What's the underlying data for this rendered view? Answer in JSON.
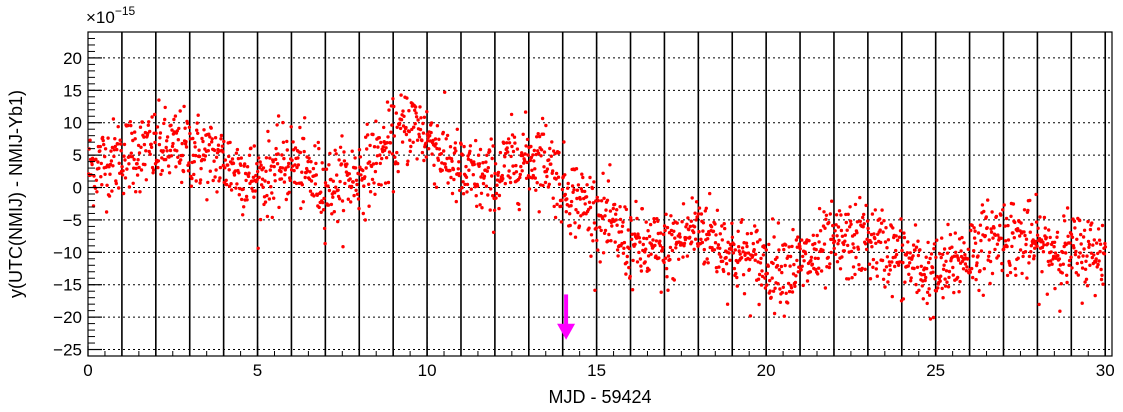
{
  "chart_data": {
    "type": "scatter",
    "title": "",
    "xlabel": "MJD - 59424",
    "ylabel": "y(UTC(NMIJ) - NMIJ-Yb1)",
    "y_exponent_label": "×10",
    "y_exponent_power": "−15",
    "xlim": [
      0,
      30.2
    ],
    "ylim": [
      -26,
      24
    ],
    "x_ticks": [
      0,
      5,
      10,
      15,
      20,
      25,
      30
    ],
    "y_ticks": [
      -25,
      -20,
      -15,
      -10,
      -5,
      0,
      5,
      10,
      15,
      20
    ],
    "vertical_lines_x": [
      1,
      2,
      3,
      4,
      5,
      6,
      7,
      8,
      9,
      10,
      11,
      12,
      13,
      14,
      15,
      16,
      17,
      18,
      19,
      20,
      21,
      22,
      23,
      24,
      25,
      26,
      27,
      28,
      29,
      30
    ],
    "grid": true,
    "marker_color": "#ff0000",
    "annotation": {
      "type": "arrow",
      "x": 14.1,
      "y_from": -16.5,
      "y_to": -23.5,
      "color": "#ff00ff"
    },
    "trend": [
      {
        "x": 0,
        "y": 3
      },
      {
        "x": 1,
        "y": 5
      },
      {
        "x": 2,
        "y": 6
      },
      {
        "x": 3,
        "y": 6
      },
      {
        "x": 4,
        "y": 4
      },
      {
        "x": 5,
        "y": 1
      },
      {
        "x": 6,
        "y": 4
      },
      {
        "x": 7,
        "y": 0
      },
      {
        "x": 8,
        "y": 2
      },
      {
        "x": 9,
        "y": 7
      },
      {
        "x": 9.5,
        "y": 10
      },
      {
        "x": 10,
        "y": 8
      },
      {
        "x": 11,
        "y": 2
      },
      {
        "x": 12,
        "y": 1
      },
      {
        "x": 12.5,
        "y": 4
      },
      {
        "x": 13.5,
        "y": 5
      },
      {
        "x": 14,
        "y": 0
      },
      {
        "x": 15,
        "y": -4
      },
      {
        "x": 16,
        "y": -9
      },
      {
        "x": 17,
        "y": -10
      },
      {
        "x": 18,
        "y": -6
      },
      {
        "x": 19,
        "y": -10
      },
      {
        "x": 20,
        "y": -12
      },
      {
        "x": 21,
        "y": -12
      },
      {
        "x": 22,
        "y": -9
      },
      {
        "x": 23,
        "y": -8
      },
      {
        "x": 24,
        "y": -11
      },
      {
        "x": 25,
        "y": -14
      },
      {
        "x": 26,
        "y": -10
      },
      {
        "x": 27,
        "y": -7
      },
      {
        "x": 28,
        "y": -9
      },
      {
        "x": 29,
        "y": -10
      },
      {
        "x": 30,
        "y": -10
      }
    ],
    "scatter_sigma": 3.0,
    "num_points": 2100
  }
}
